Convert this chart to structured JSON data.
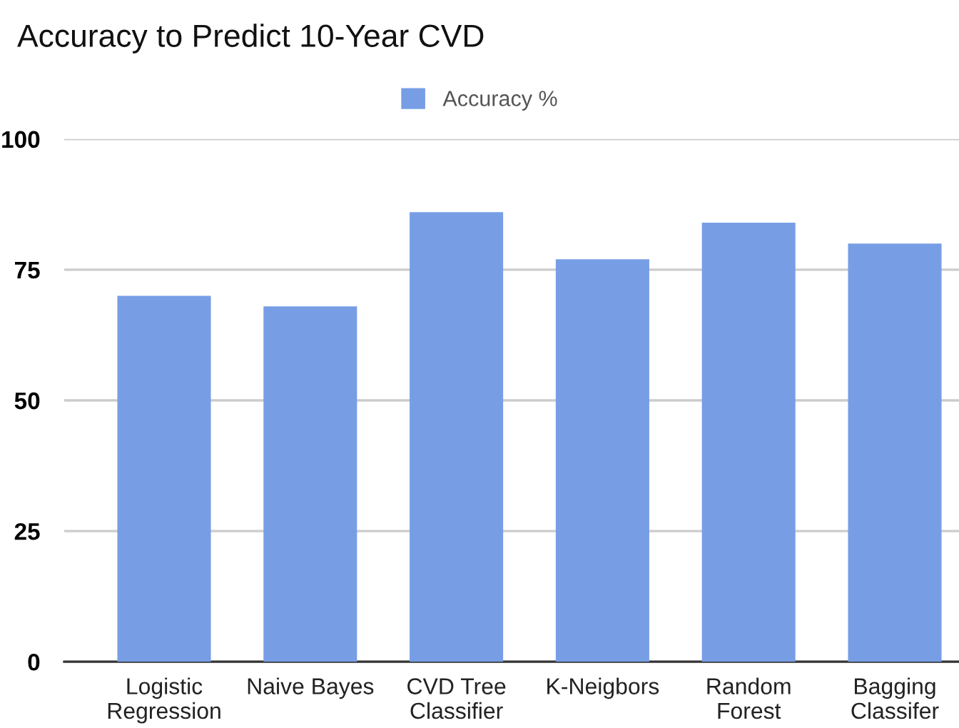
{
  "chart_data": {
    "type": "bar",
    "title": "Accuracy to Predict 10-Year CVD",
    "categories": [
      "Logistic\nRegression",
      "Naive Bayes",
      "CVD Tree\nClassifier",
      "K-Neigbors",
      "Random\nForest",
      "Bagging\nClassifer"
    ],
    "series": [
      {
        "name": "Accuracy %",
        "color": "#779ee5",
        "values": [
          70,
          68,
          86,
          77,
          84,
          80
        ]
      }
    ],
    "ylim": [
      0,
      100
    ],
    "yticks": [
      0,
      25,
      50,
      75,
      100
    ],
    "grid": "y",
    "legend": "top"
  }
}
